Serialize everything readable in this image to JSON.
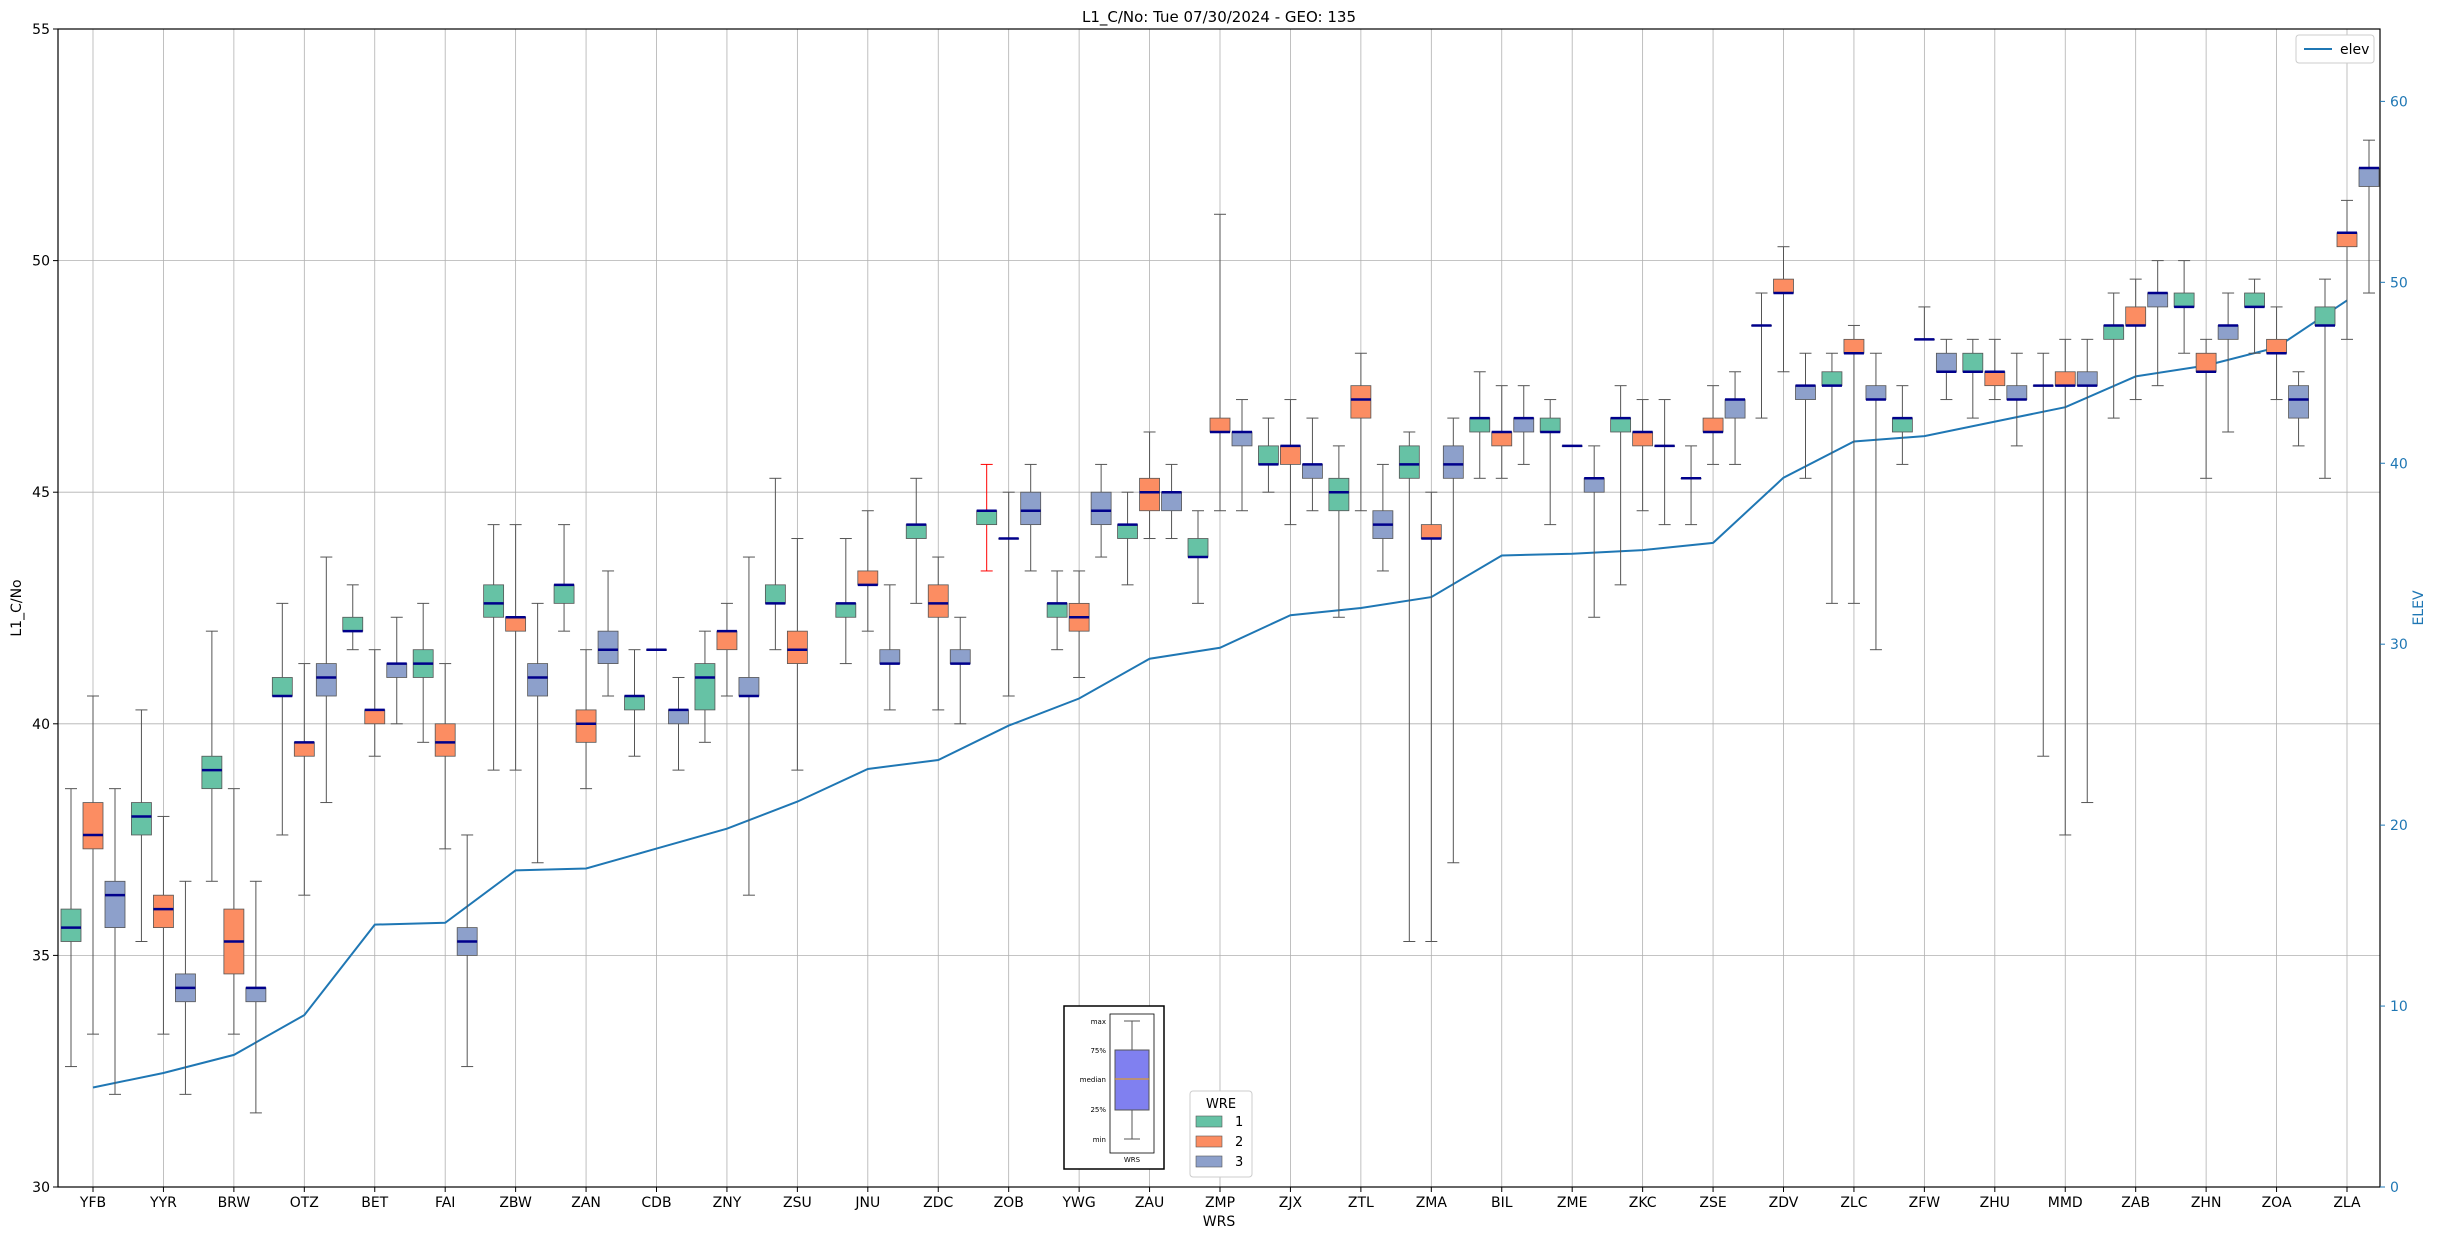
{
  "chart_data": {
    "type": "box",
    "title": "L1_C/No: Tue 07/30/2024 - GEO: 135",
    "xlabel": "WRS",
    "ylabel": "L1_C/No",
    "y2label": "ELEV",
    "ylim": [
      30,
      55
    ],
    "y2lim": [
      0,
      64
    ],
    "yticks": [
      "30",
      "35",
      "40",
      "45",
      "50",
      "55"
    ],
    "y2ticks": [
      "0",
      "10",
      "20",
      "30",
      "40",
      "50",
      "60"
    ],
    "grid": true,
    "categories": [
      "YFB",
      "YYR",
      "BRW",
      "OTZ",
      "BET",
      "FAI",
      "ZBW",
      "ZAN",
      "CDB",
      "ZNY",
      "ZSU",
      "JNU",
      "ZDC",
      "ZOB",
      "YWG",
      "ZAU",
      "ZMP",
      "ZJX",
      "ZTL",
      "ZMA",
      "BIL",
      "ZME",
      "ZKC",
      "ZSE",
      "ZDV",
      "ZLC",
      "ZFW",
      "ZHU",
      "MMD",
      "ZAB",
      "ZHN",
      "ZOA",
      "ZLA"
    ],
    "elev": {
      "name": "elev",
      "values": [
        5.5,
        6.3,
        7.3,
        9.5,
        14.5,
        14.6,
        17.5,
        17.6,
        18.7,
        19.8,
        21.3,
        23.1,
        23.6,
        25.5,
        27,
        29.2,
        29.8,
        31.6,
        32,
        32.6,
        34.9,
        35,
        35.2,
        35.6,
        39.2,
        41.2,
        41.5,
        42.3,
        43.1,
        44.8,
        45.4,
        46.4,
        49
      ]
    },
    "legend": {
      "title": "WRE",
      "entries": [
        "1",
        "2",
        "3"
      ],
      "colors": [
        "#66c2a5",
        "#fc8d62",
        "#8da0cb"
      ]
    },
    "series": [
      {
        "name": "1",
        "boxes": [
          {
            "min": 32.6,
            "q1": 35.3,
            "median": 35.6,
            "q3": 36,
            "max": 38.6
          },
          {
            "min": 35.3,
            "q1": 37.6,
            "median": 38,
            "q3": 38.3,
            "max": 40.3
          },
          {
            "min": 36.6,
            "q1": 38.6,
            "median": 39,
            "q3": 39.3,
            "max": 42
          },
          {
            "min": 37.6,
            "q1": 40.6,
            "median": 40.6,
            "q3": 41,
            "max": 42.6
          },
          {
            "min": 41.6,
            "q1": 42,
            "median": 42,
            "q3": 42.3,
            "max": 43
          },
          {
            "min": 39.6,
            "q1": 41,
            "median": 41.3,
            "q3": 41.6,
            "max": 42.6
          },
          {
            "min": 39,
            "q1": 42.3,
            "median": 42.6,
            "q3": 43,
            "max": 44.3
          },
          {
            "min": 42,
            "q1": 42.6,
            "median": 43,
            "q3": 43,
            "max": 44.3
          },
          {
            "min": 39.3,
            "q1": 40.3,
            "median": 40.6,
            "q3": 40.6,
            "max": 41.6
          },
          {
            "min": 39.6,
            "q1": 40.3,
            "median": 41,
            "q3": 41.3,
            "max": 42
          },
          {
            "min": 41.6,
            "q1": 42.6,
            "median": 42.6,
            "q3": 43,
            "max": 45.3
          },
          {
            "min": 41.3,
            "q1": 42.3,
            "median": 42.6,
            "q3": 42.6,
            "max": 44
          },
          {
            "min": 42.6,
            "q1": 44,
            "median": 44.3,
            "q3": 44.3,
            "max": 45.3
          },
          {
            "min": 43.3,
            "q1": 44.3,
            "median": 44.6,
            "q3": 44.6,
            "max": 45.6
          },
          {
            "min": 41.6,
            "q1": 42.3,
            "median": 42.6,
            "q3": 42.6,
            "max": 43.3
          },
          {
            "min": 43,
            "q1": 44,
            "median": 44.3,
            "q3": 44.3,
            "max": 45
          },
          {
            "min": 42.6,
            "q1": 43.6,
            "median": 43.6,
            "q3": 44,
            "max": 44.6
          },
          {
            "min": 45,
            "q1": 45.6,
            "median": 45.6,
            "q3": 46,
            "max": 46.6
          },
          {
            "min": 42.3,
            "q1": 44.6,
            "median": 45,
            "q3": 45.3,
            "max": 46
          },
          {
            "min": 35.3,
            "q1": 45.3,
            "median": 45.6,
            "q3": 46,
            "max": 46.3
          },
          {
            "min": 45.3,
            "q1": 46.3,
            "median": 46.6,
            "q3": 46.6,
            "max": 47.6
          },
          {
            "min": 44.3,
            "q1": 46.3,
            "median": 46.3,
            "q3": 46.6,
            "max": 47
          },
          {
            "min": 43,
            "q1": 46.3,
            "median": 46.6,
            "q3": 46.6,
            "max": 47.3
          },
          {
            "min": 44.3,
            "q1": 45.3,
            "median": 45.3,
            "q3": 45.3,
            "max": 46
          },
          {
            "min": 46.6,
            "q1": 48.6,
            "median": 48.6,
            "q3": 48.6,
            "max": 49.3
          },
          {
            "min": 42.6,
            "q1": 47.3,
            "median": 47.3,
            "q3": 47.6,
            "max": 48
          },
          {
            "min": 45.6,
            "q1": 46.3,
            "median": 46.6,
            "q3": 46.6,
            "max": 47.3
          },
          {
            "min": 46.6,
            "q1": 47.6,
            "median": 47.6,
            "q3": 48,
            "max": 48.3
          },
          {
            "min": 39.3,
            "q1": 47.3,
            "median": 47.3,
            "q3": 47.3,
            "max": 48
          },
          {
            "min": 46.6,
            "q1": 48.3,
            "median": 48.6,
            "q3": 48.6,
            "max": 49.3
          },
          {
            "min": 48,
            "q1": 49,
            "median": 49,
            "q3": 49.3,
            "max": 50
          },
          {
            "min": 48,
            "q1": 49,
            "median": 49,
            "q3": 49.3,
            "max": 49.6
          },
          {
            "min": 45.3,
            "q1": 48.6,
            "median": 48.6,
            "q3": 49,
            "max": 49.6
          }
        ]
      },
      {
        "name": "2",
        "boxes": [
          {
            "min": 33.3,
            "q1": 37.3,
            "median": 37.6,
            "q3": 38.3,
            "max": 40.6
          },
          {
            "min": 33.3,
            "q1": 35.6,
            "median": 36,
            "q3": 36.3,
            "max": 38
          },
          {
            "min": 33.3,
            "q1": 34.6,
            "median": 35.3,
            "q3": 36,
            "max": 38.6
          },
          {
            "min": 36.3,
            "q1": 39.3,
            "median": 39.6,
            "q3": 39.6,
            "max": 41.3
          },
          {
            "min": 39.3,
            "q1": 40,
            "median": 40.3,
            "q3": 40.3,
            "max": 41.6
          },
          {
            "min": 37.3,
            "q1": 39.3,
            "median": 39.6,
            "q3": 40,
            "max": 41.3
          },
          {
            "min": 39,
            "q1": 42,
            "median": 42.3,
            "q3": 42.3,
            "max": 44.3
          },
          {
            "min": 38.6,
            "q1": 39.6,
            "median": 40,
            "q3": 40.3,
            "max": 41.6
          },
          {
            "min": 41.6,
            "q1": 41.6,
            "median": 41.6,
            "q3": 41.6,
            "max": 41.6
          },
          {
            "min": 40.6,
            "q1": 41.6,
            "median": 42,
            "q3": 42,
            "max": 42.6
          },
          {
            "min": 39,
            "q1": 41.3,
            "median": 41.6,
            "q3": 42,
            "max": 44
          },
          {
            "min": 42,
            "q1": 43,
            "median": 43,
            "q3": 43.3,
            "max": 44.6
          },
          {
            "min": 40.3,
            "q1": 42.3,
            "median": 42.6,
            "q3": 43,
            "max": 43.6
          },
          {
            "min": 40.6,
            "q1": 44,
            "median": 44,
            "q3": 44,
            "max": 45
          },
          {
            "min": 41,
            "q1": 42,
            "median": 42.3,
            "q3": 42.6,
            "max": 43.3
          },
          {
            "min": 44,
            "q1": 44.6,
            "median": 45,
            "q3": 45.3,
            "max": 46.3
          },
          {
            "min": 44.6,
            "q1": 46.3,
            "median": 46.3,
            "q3": 46.6,
            "max": 51
          },
          {
            "min": 44.3,
            "q1": 45.6,
            "median": 46,
            "q3": 46,
            "max": 47
          },
          {
            "min": 44.6,
            "q1": 46.6,
            "median": 47,
            "q3": 47.3,
            "max": 48
          },
          {
            "min": 35.3,
            "q1": 44,
            "median": 44,
            "q3": 44.3,
            "max": 45
          },
          {
            "min": 45.3,
            "q1": 46,
            "median": 46.3,
            "q3": 46.3,
            "max": 47.3
          },
          {
            "min": 46,
            "q1": 46,
            "median": 46,
            "q3": 46,
            "max": 46
          },
          {
            "min": 44.6,
            "q1": 46,
            "median": 46.3,
            "q3": 46.3,
            "max": 47
          },
          {
            "min": 45.6,
            "q1": 46.3,
            "median": 46.3,
            "q3": 46.6,
            "max": 47.3
          },
          {
            "min": 47.6,
            "q1": 49.3,
            "median": 49.3,
            "q3": 49.6,
            "max": 50.3
          },
          {
            "min": 42.6,
            "q1": 48,
            "median": 48,
            "q3": 48.3,
            "max": 48.6
          },
          {
            "min": 48.3,
            "q1": 48.3,
            "median": 48.3,
            "q3": 48.3,
            "max": 49
          },
          {
            "min": 47,
            "q1": 47.3,
            "median": 47.6,
            "q3": 47.6,
            "max": 48.3
          },
          {
            "min": 37.6,
            "q1": 47.3,
            "median": 47.3,
            "q3": 47.6,
            "max": 48.3
          },
          {
            "min": 47,
            "q1": 48.6,
            "median": 48.6,
            "q3": 49,
            "max": 49.6
          },
          {
            "min": 45.3,
            "q1": 47.6,
            "median": 47.6,
            "q3": 48,
            "max": 48.3
          },
          {
            "min": 47,
            "q1": 48,
            "median": 48,
            "q3": 48.3,
            "max": 49
          },
          {
            "min": 48.3,
            "q1": 50.3,
            "median": 50.6,
            "q3": 50.6,
            "max": 51.3
          }
        ]
      },
      {
        "name": "3",
        "boxes": [
          {
            "min": 32,
            "q1": 35.6,
            "median": 36.3,
            "q3": 36.6,
            "max": 38.6
          },
          {
            "min": 32,
            "q1": 34,
            "median": 34.3,
            "q3": 34.6,
            "max": 36.6
          },
          {
            "min": 31.6,
            "q1": 34,
            "median": 34.3,
            "q3": 34.3,
            "max": 36.6
          },
          {
            "min": 38.3,
            "q1": 40.6,
            "median": 41,
            "q3": 41.3,
            "max": 43.6
          },
          {
            "min": 40,
            "q1": 41,
            "median": 41.3,
            "q3": 41.3,
            "max": 42.3
          },
          {
            "min": 32.6,
            "q1": 35,
            "median": 35.3,
            "q3": 35.6,
            "max": 37.6
          },
          {
            "min": 37,
            "q1": 40.6,
            "median": 41,
            "q3": 41.3,
            "max": 42.6
          },
          {
            "min": 40.6,
            "q1": 41.3,
            "median": 41.6,
            "q3": 42,
            "max": 43.3
          },
          {
            "min": 39,
            "q1": 40,
            "median": 40.3,
            "q3": 40.3,
            "max": 41
          },
          {
            "min": 36.3,
            "q1": 40.6,
            "median": 40.6,
            "q3": 41,
            "max": 43.6
          },
          {
            "min": null,
            "q1": null,
            "median": null,
            "q3": null,
            "max": null
          },
          {
            "min": 40.3,
            "q1": 41.3,
            "median": 41.3,
            "q3": 41.6,
            "max": 43
          },
          {
            "min": 40,
            "q1": 41.3,
            "median": 41.3,
            "q3": 41.6,
            "max": 42.3
          },
          {
            "min": 43.3,
            "q1": 44.3,
            "median": 44.6,
            "q3": 45,
            "max": 45.6
          },
          {
            "min": 43.6,
            "q1": 44.3,
            "median": 44.6,
            "q3": 45,
            "max": 45.6
          },
          {
            "min": 44,
            "q1": 44.6,
            "median": 45,
            "q3": 45,
            "max": 45.6
          },
          {
            "min": 44.6,
            "q1": 46,
            "median": 46.3,
            "q3": 46.3,
            "max": 47
          },
          {
            "min": 44.6,
            "q1": 45.3,
            "median": 45.6,
            "q3": 45.6,
            "max": 46.6
          },
          {
            "min": 43.3,
            "q1": 44,
            "median": 44.3,
            "q3": 44.6,
            "max": 45.6
          },
          {
            "min": 37,
            "q1": 45.3,
            "median": 45.6,
            "q3": 46,
            "max": 46.6
          },
          {
            "min": 45.6,
            "q1": 46.3,
            "median": 46.6,
            "q3": 46.6,
            "max": 47.3
          },
          {
            "min": 42.3,
            "q1": 45,
            "median": 45.3,
            "q3": 45.3,
            "max": 46
          },
          {
            "min": 44.3,
            "q1": 46,
            "median": 46,
            "q3": 46,
            "max": 47
          },
          {
            "min": 45.6,
            "q1": 46.6,
            "median": 47,
            "q3": 47,
            "max": 47.6
          },
          {
            "min": 45.3,
            "q1": 47,
            "median": 47.3,
            "q3": 47.3,
            "max": 48
          },
          {
            "min": 41.6,
            "q1": 47,
            "median": 47,
            "q3": 47.3,
            "max": 48
          },
          {
            "min": 47,
            "q1": 47.6,
            "median": 47.6,
            "q3": 48,
            "max": 48.3
          },
          {
            "min": 46,
            "q1": 47,
            "median": 47,
            "q3": 47.3,
            "max": 48
          },
          {
            "min": 38.3,
            "q1": 47.3,
            "median": 47.3,
            "q3": 47.6,
            "max": 48.3
          },
          {
            "min": 47.3,
            "q1": 49,
            "median": 49.3,
            "q3": 49.3,
            "max": 50
          },
          {
            "min": 46.3,
            "q1": 48.3,
            "median": 48.6,
            "q3": 48.6,
            "max": 49.3
          },
          {
            "min": 46,
            "q1": 46.6,
            "median": 47,
            "q3": 47.3,
            "max": 47.6
          },
          {
            "min": 49.3,
            "q1": 51.6,
            "median": 52,
            "q3": 52,
            "max": 52.6
          }
        ]
      }
    ],
    "highlight": {
      "category": "ZOB",
      "series": "1",
      "color": "#ff0000"
    },
    "inset": {
      "labels": [
        "max",
        "75%",
        "median",
        "25%",
        "min"
      ],
      "xlabel": "WRS"
    },
    "colors": {
      "median": "#00008b",
      "whisker": "#555555",
      "elev_line": "#1f77b4",
      "grid": "#b0b0b0"
    }
  }
}
